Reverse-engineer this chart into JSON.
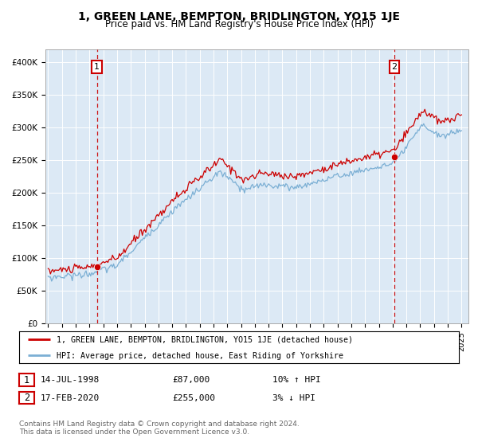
{
  "title": "1, GREEN LANE, BEMPTON, BRIDLINGTON, YO15 1JE",
  "subtitle": "Price paid vs. HM Land Registry's House Price Index (HPI)",
  "title_fontsize": 10,
  "subtitle_fontsize": 8.5,
  "plot_bg_color": "#dce9f5",
  "red_line_color": "#cc0000",
  "blue_line_color": "#7bafd4",
  "point1_year": 1998.54,
  "point1_value": 87000,
  "point2_year": 2020.12,
  "point2_value": 255000,
  "vline_color": "#cc0000",
  "marker_color": "#cc0000",
  "ylim": [
    0,
    420000
  ],
  "ytick_values": [
    0,
    50000,
    100000,
    150000,
    200000,
    250000,
    300000,
    350000,
    400000
  ],
  "ytick_labels": [
    "£0",
    "£50K",
    "£100K",
    "£150K",
    "£200K",
    "£250K",
    "£300K",
    "£350K",
    "£400K"
  ],
  "legend_line1": "1, GREEN LANE, BEMPTON, BRIDLINGTON, YO15 1JE (detached house)",
  "legend_line2": "HPI: Average price, detached house, East Riding of Yorkshire",
  "table_row1": [
    "1",
    "14-JUL-1998",
    "£87,000",
    "10% ↑ HPI"
  ],
  "table_row2": [
    "2",
    "17-FEB-2020",
    "£255,000",
    "3% ↓ HPI"
  ],
  "footer": "Contains HM Land Registry data © Crown copyright and database right 2024.\nThis data is licensed under the Open Government Licence v3.0.",
  "xlim_left": 1994.8,
  "xlim_right": 2025.5
}
